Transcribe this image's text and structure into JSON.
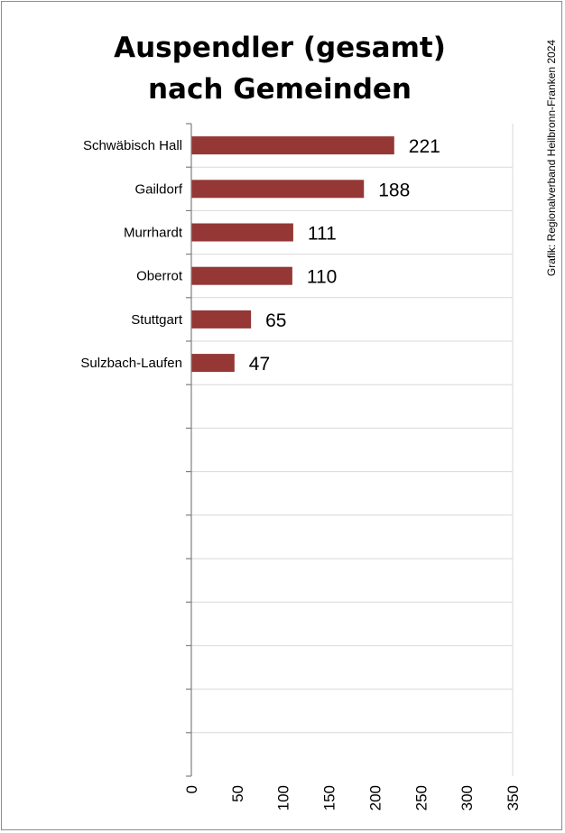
{
  "chart_data": {
    "type": "bar",
    "orientation": "horizontal",
    "title_lines": [
      "Auspendler (gesamt)",
      "nach Gemeinden"
    ],
    "credit": "Grafik: Regionalverband Heilbronn-Franken 2024",
    "categories": [
      "Schwäbisch Hall",
      "Gaildorf",
      "Murrhardt",
      "Oberrot",
      "Stuttgart",
      "Sulzbach-Laufen"
    ],
    "values": [
      221,
      188,
      111,
      110,
      65,
      47
    ],
    "xlim": [
      0,
      350
    ],
    "xticks": [
      0,
      50,
      100,
      150,
      200,
      250,
      300,
      350
    ],
    "slots": 15,
    "bar_color": "#953735",
    "grid": "horizontal",
    "xlabel": "",
    "ylabel": ""
  }
}
